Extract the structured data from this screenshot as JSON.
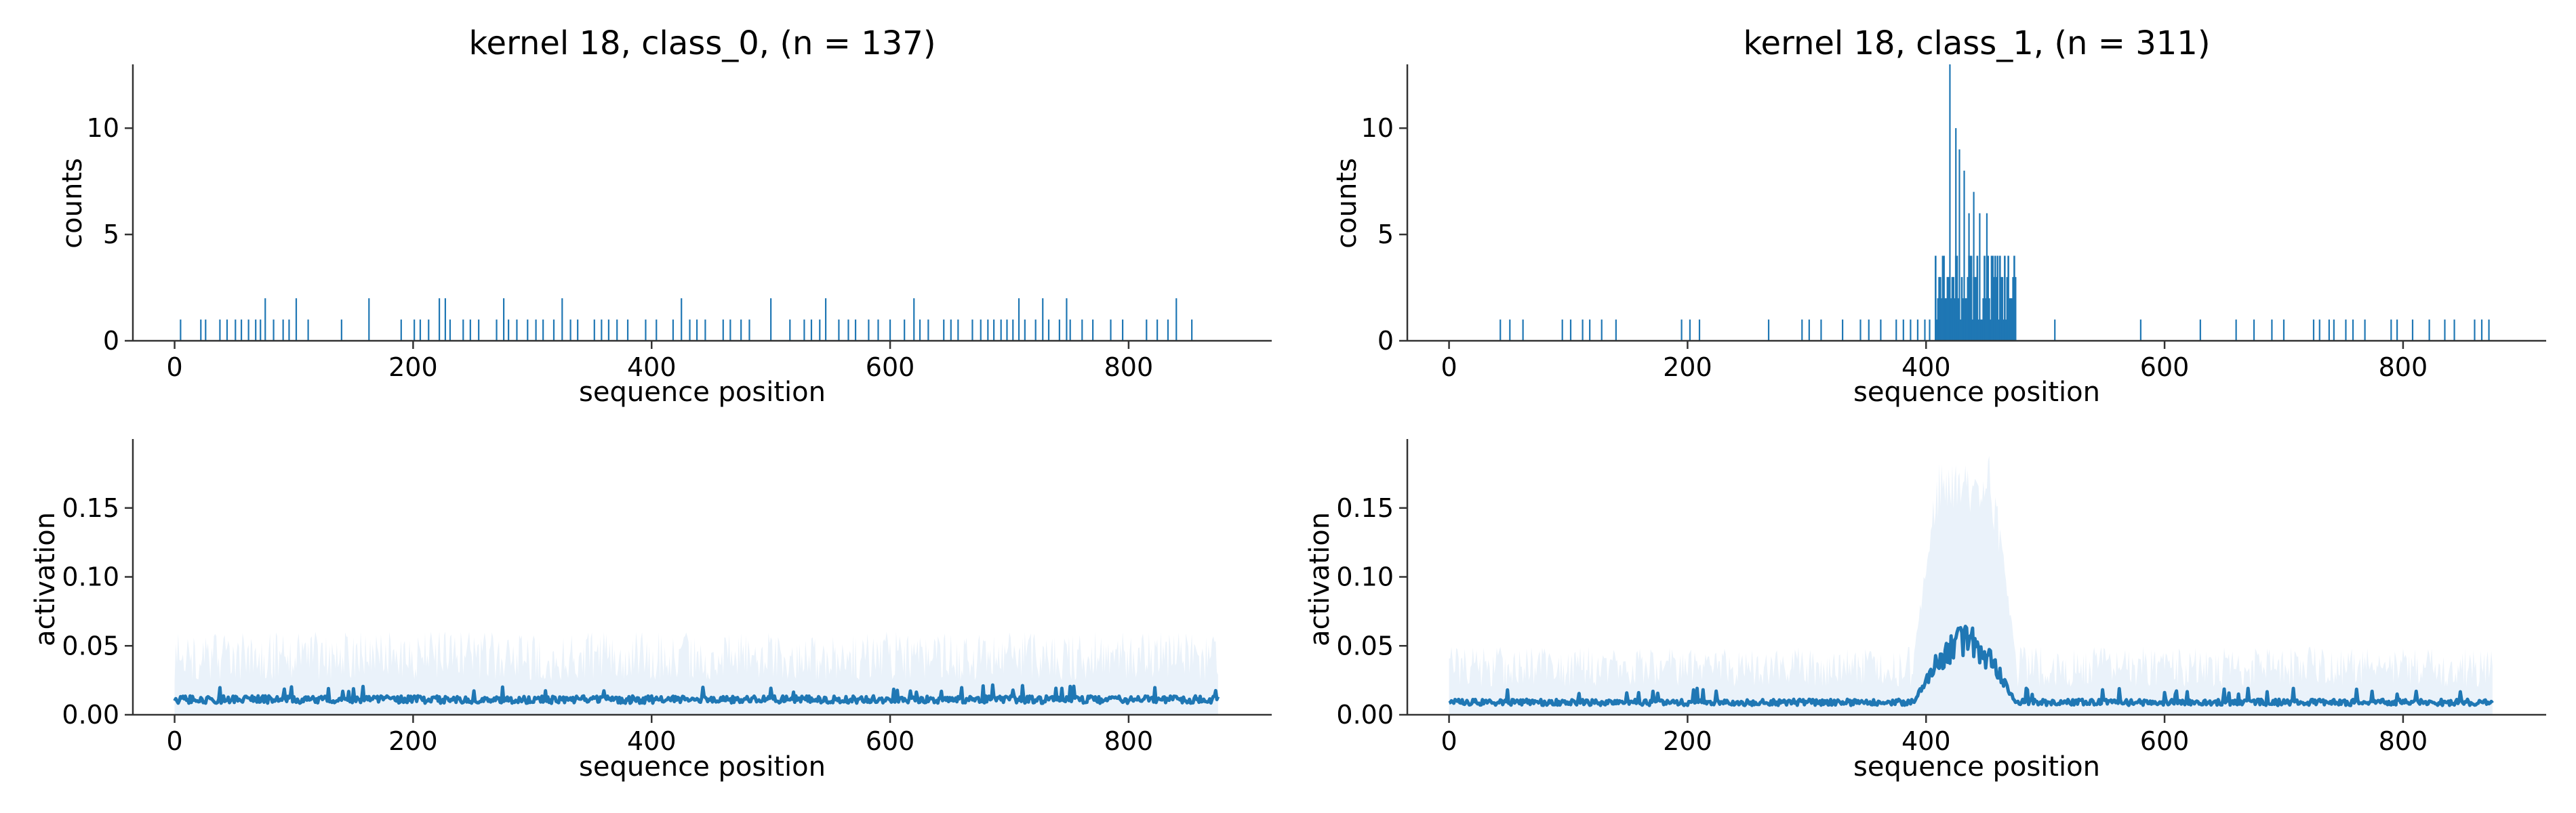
{
  "chart_data": [
    {
      "id": "p00",
      "type": "bar",
      "title": "kernel 18, class_0, (n = 137)",
      "xlabel": "sequence position",
      "ylabel": "counts",
      "xlim": [
        -35,
        920
      ],
      "ylim": [
        0,
        13
      ],
      "xticks": [
        0,
        200,
        400,
        600,
        800
      ],
      "yticks": [
        0,
        5,
        10
      ],
      "color": "#1f77b4",
      "positions": [
        5,
        22,
        26,
        38,
        44,
        51,
        56,
        62,
        68,
        72,
        76,
        83,
        91,
        96,
        102,
        112,
        140,
        163,
        190,
        201,
        206,
        213,
        222,
        227,
        231,
        242,
        248,
        255,
        270,
        276,
        280,
        287,
        296,
        303,
        309,
        318,
        325,
        332,
        338,
        352,
        358,
        364,
        371,
        380,
        395,
        404,
        418,
        425,
        432,
        438,
        445,
        460,
        466,
        475,
        482,
        500,
        516,
        528,
        534,
        541,
        546,
        557,
        565,
        571,
        582,
        590,
        600,
        612,
        620,
        625,
        632,
        645,
        651,
        657,
        669,
        676,
        682,
        687,
        693,
        698,
        703,
        708,
        713,
        722,
        728,
        733,
        742,
        748,
        751,
        761,
        770,
        785,
        795,
        815,
        824,
        833,
        840,
        853
      ],
      "counts": [
        1,
        1,
        1,
        1,
        1,
        1,
        1,
        1,
        1,
        1,
        2,
        1,
        1,
        1,
        2,
        1,
        1,
        2,
        1,
        1,
        1,
        1,
        2,
        2,
        1,
        1,
        1,
        1,
        1,
        2,
        1,
        1,
        1,
        1,
        1,
        1,
        2,
        1,
        1,
        1,
        1,
        1,
        1,
        1,
        1,
        1,
        1,
        2,
        1,
        1,
        1,
        1,
        1,
        1,
        1,
        2,
        1,
        1,
        1,
        1,
        2,
        1,
        1,
        1,
        1,
        1,
        1,
        1,
        2,
        1,
        1,
        1,
        1,
        1,
        1,
        1,
        1,
        1,
        1,
        1,
        1,
        2,
        1,
        1,
        2,
        1,
        1,
        2,
        1,
        1,
        1,
        1,
        1,
        1,
        1,
        1,
        2,
        1
      ]
    },
    {
      "id": "p01",
      "type": "bar",
      "title": "kernel 18, class_1, (n = 311)",
      "xlabel": "sequence position",
      "ylabel": "counts",
      "xlim": [
        -35,
        920
      ],
      "ylim": [
        0,
        13
      ],
      "xticks": [
        0,
        200,
        400,
        600,
        800
      ],
      "yticks": [
        0,
        5,
        10
      ],
      "color": "#1f77b4",
      "positions": [
        43,
        51,
        62,
        95,
        102,
        112,
        118,
        128,
        140,
        195,
        202,
        210,
        268,
        296,
        302,
        312,
        330,
        345,
        352,
        362,
        375,
        381,
        387,
        393,
        399,
        403,
        508,
        580,
        630,
        660,
        675,
        690,
        700,
        725,
        730,
        738,
        742,
        752,
        758,
        768,
        790,
        795,
        808,
        822,
        835,
        843,
        860,
        866,
        872
      ],
      "counts": [
        1,
        1,
        1,
        1,
        1,
        1,
        1,
        1,
        1,
        1,
        1,
        1,
        1,
        1,
        1,
        1,
        1,
        1,
        1,
        1,
        1,
        1,
        1,
        1,
        1,
        1,
        1,
        1,
        1,
        1,
        1,
        1,
        1,
        1,
        1,
        1,
        1,
        1,
        1,
        1,
        1,
        1,
        1,
        1,
        1,
        1,
        1,
        1,
        1
      ],
      "peak_range": [
        408,
        475
      ],
      "peak_positions": [
        420,
        425,
        428,
        432,
        436,
        440,
        445,
        451
      ],
      "peak_counts": [
        13,
        10,
        9,
        8,
        6,
        7,
        6,
        6
      ]
    },
    {
      "id": "p10",
      "type": "line",
      "xlabel": "sequence position",
      "ylabel": "activation",
      "xlim": [
        -35,
        920
      ],
      "ylim": [
        0,
        0.2
      ],
      "xticks": [
        0,
        200,
        400,
        600,
        800
      ],
      "yticks": [
        0.0,
        0.05,
        0.1,
        0.15
      ],
      "ytick_labels": [
        "0.00",
        "0.05",
        "0.10",
        "0.15"
      ],
      "color": "#1f77b4",
      "band_color": "#eaf2fa",
      "x_range": [
        0,
        875
      ],
      "mean_level": 0.011,
      "band_high": 0.055
    },
    {
      "id": "p11",
      "type": "line",
      "xlabel": "sequence position",
      "ylabel": "activation",
      "xlim": [
        -35,
        920
      ],
      "ylim": [
        0,
        0.2
      ],
      "xticks": [
        0,
        200,
        400,
        600,
        800
      ],
      "yticks": [
        0.0,
        0.05,
        0.1,
        0.15
      ],
      "ytick_labels": [
        "0.00",
        "0.05",
        "0.10",
        "0.15"
      ],
      "color": "#1f77b4",
      "band_color": "#eaf2fa",
      "x_range": [
        0,
        875
      ],
      "mean_level": 0.009,
      "band_high": 0.045,
      "peak_range": [
        390,
        475
      ],
      "peak_mean": 0.065,
      "peak_band_high": 0.19
    }
  ]
}
